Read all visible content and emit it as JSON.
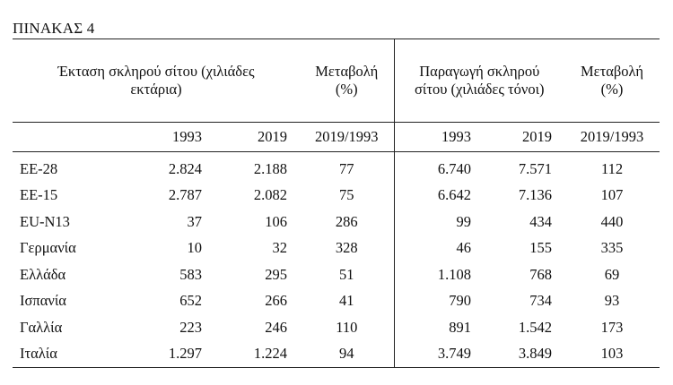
{
  "caption": "ΠΙΝΑΚΑΣ 4",
  "headers": {
    "area_group": "Έκταση σκληρού σίτου (χιλιάδες εκτάρια)",
    "change_left": "Μεταβολή (%)",
    "production_group": "Παραγωγή σκληρού σίτου (χιλιάδες τόνοι)",
    "change_right": "Μεταβολή (%)"
  },
  "subheaders": {
    "area_1993": "1993",
    "area_2019": "2019",
    "change_left": "2019/1993",
    "prod_1993": "1993",
    "prod_2019": "2019",
    "change_right": "2019/1993"
  },
  "rows": [
    {
      "label": "ΕΕ-28",
      "area_1993": "2.824",
      "area_2019": "2.188",
      "area_change": "77",
      "prod_1993": "6.740",
      "prod_2019": "7.571",
      "prod_change": "112"
    },
    {
      "label": "ΕΕ-15",
      "area_1993": "2.787",
      "area_2019": "2.082",
      "area_change": "75",
      "prod_1993": "6.642",
      "prod_2019": "7.136",
      "prod_change": "107"
    },
    {
      "label": "EU-N13",
      "area_1993": "37",
      "area_2019": "106",
      "area_change": "286",
      "prod_1993": "99",
      "prod_2019": "434",
      "prod_change": "440"
    },
    {
      "label": "Γερμανία",
      "area_1993": "10",
      "area_2019": "32",
      "area_change": "328",
      "prod_1993": "46",
      "prod_2019": "155",
      "prod_change": "335"
    },
    {
      "label": "Ελλάδα",
      "area_1993": "583",
      "area_2019": "295",
      "area_change": "51",
      "prod_1993": "1.108",
      "prod_2019": "768",
      "prod_change": "69"
    },
    {
      "label": "Ισπανία",
      "area_1993": "652",
      "area_2019": "266",
      "area_change": "41",
      "prod_1993": "790",
      "prod_2019": "734",
      "prod_change": "93"
    },
    {
      "label": "Γαλλία",
      "area_1993": "223",
      "area_2019": "246",
      "area_change": "110",
      "prod_1993": "891",
      "prod_2019": "1.542",
      "prod_change": "173"
    },
    {
      "label": "Ιταλία",
      "area_1993": "1.297",
      "area_2019": "1.224",
      "area_change": "94",
      "prod_1993": "3.749",
      "prod_2019": "3.849",
      "prod_change": "103"
    }
  ]
}
